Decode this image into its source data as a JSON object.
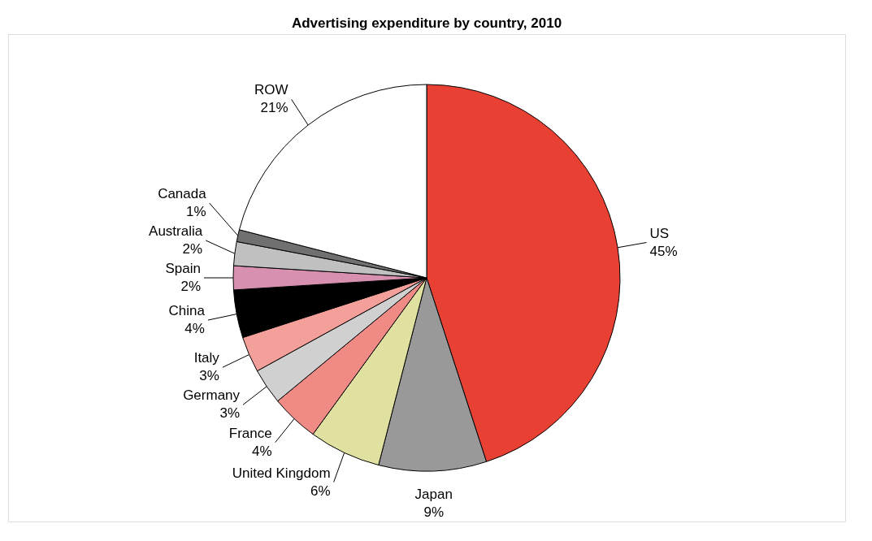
{
  "chart_data": {
    "type": "pie",
    "title": "Advertising expenditure by country, 2010",
    "categories": [
      "US",
      "Japan",
      "United Kingdom",
      "France",
      "Germany",
      "Italy",
      "China",
      "Spain",
      "Australia",
      "Canada",
      "ROW"
    ],
    "values": [
      45,
      9,
      6,
      4,
      3,
      3,
      4,
      2,
      2,
      1,
      21
    ],
    "value_labels": [
      "45%",
      "9%",
      "6%",
      "4%",
      "3%",
      "3%",
      "4%",
      "2%",
      "2%",
      "1%",
      "21%"
    ],
    "colors": [
      "#e84134",
      "#999999",
      "#e0e0a0",
      "#f08a84",
      "#d0d0d0",
      "#f4a09a",
      "#000000",
      "#d890b0",
      "#c0c0c0",
      "#707070",
      "#ffffff"
    ],
    "legend": false
  }
}
